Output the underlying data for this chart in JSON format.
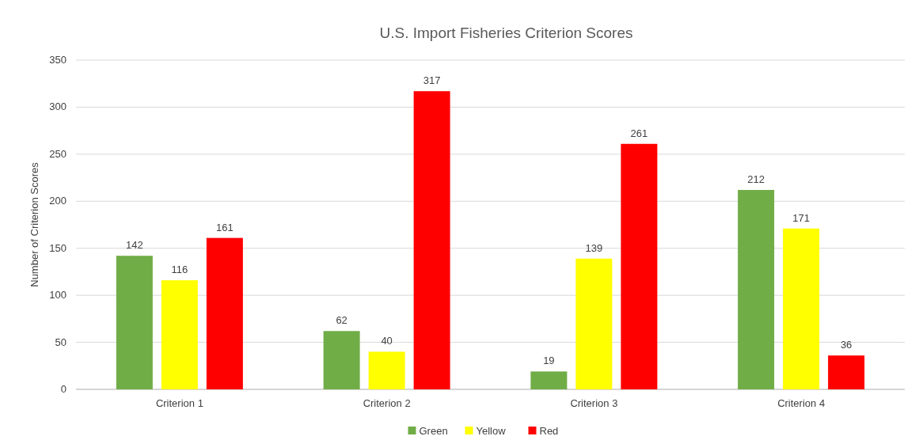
{
  "chart_data": {
    "type": "bar",
    "title": "U.S. Import Fisheries Criterion Scores",
    "ylabel": "Number of Criterion Scores",
    "categories": [
      "Criterion 1",
      "Criterion 2",
      "Criterion 3",
      "Criterion 4"
    ],
    "series": [
      {
        "name": "Green",
        "color": "#70ad47",
        "values": [
          142,
          62,
          19,
          212
        ]
      },
      {
        "name": "Yellow",
        "color": "#ffff00",
        "values": [
          116,
          40,
          139,
          171
        ]
      },
      {
        "name": "Red",
        "color": "#ff0000",
        "values": [
          161,
          317,
          261,
          36
        ]
      }
    ],
    "ylim": [
      0,
      350
    ],
    "yticks": [
      0,
      50,
      100,
      150,
      200,
      250,
      300,
      350
    ],
    "grid": "y",
    "legend": "bottom",
    "data_labels": true
  }
}
